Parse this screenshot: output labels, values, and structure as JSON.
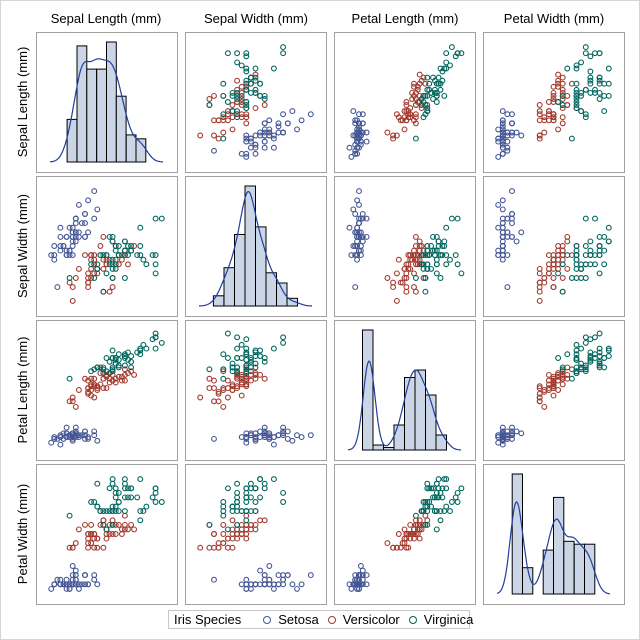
{
  "chart_data": {
    "type": "scatter-matrix",
    "title": "",
    "variables": [
      "Sepal Length (mm)",
      "Sepal Width (mm)",
      "Petal Length (mm)",
      "Petal Width (mm)"
    ],
    "diagonal": "histogram with kernel density curve",
    "legend": {
      "title": "Iris Species",
      "position": "bottom",
      "entries": [
        {
          "name": "Setosa",
          "color": "#445694"
        },
        {
          "name": "Versicolor",
          "color": "#A23A2E"
        },
        {
          "name": "Virginica",
          "color": "#01665E"
        }
      ]
    },
    "colors": {
      "hist_fill": "#CAD5E5",
      "hist_outline": "#000000",
      "density_line": "#1F3FA0",
      "panel_border": "#A0A0A0"
    },
    "series": [
      {
        "name": "Setosa",
        "rows": [
          [
            51,
            35,
            14,
            2
          ],
          [
            49,
            30,
            14,
            2
          ],
          [
            47,
            32,
            13,
            2
          ],
          [
            46,
            31,
            15,
            2
          ],
          [
            50,
            36,
            14,
            2
          ],
          [
            54,
            39,
            17,
            4
          ],
          [
            46,
            34,
            14,
            3
          ],
          [
            50,
            34,
            15,
            2
          ],
          [
            44,
            29,
            14,
            2
          ],
          [
            49,
            31,
            15,
            1
          ],
          [
            54,
            37,
            15,
            2
          ],
          [
            48,
            34,
            16,
            2
          ],
          [
            48,
            30,
            14,
            1
          ],
          [
            43,
            30,
            11,
            1
          ],
          [
            58,
            40,
            12,
            2
          ],
          [
            57,
            44,
            15,
            4
          ],
          [
            54,
            39,
            13,
            4
          ],
          [
            51,
            35,
            14,
            3
          ],
          [
            57,
            38,
            17,
            3
          ],
          [
            51,
            38,
            15,
            3
          ],
          [
            54,
            34,
            17,
            2
          ],
          [
            51,
            37,
            15,
            4
          ],
          [
            46,
            36,
            10,
            2
          ],
          [
            51,
            33,
            17,
            5
          ],
          [
            48,
            34,
            19,
            2
          ],
          [
            50,
            30,
            16,
            2
          ],
          [
            50,
            34,
            16,
            4
          ],
          [
            52,
            35,
            15,
            2
          ],
          [
            52,
            34,
            14,
            2
          ],
          [
            47,
            32,
            16,
            2
          ],
          [
            48,
            31,
            16,
            2
          ],
          [
            54,
            34,
            15,
            4
          ],
          [
            52,
            41,
            15,
            1
          ],
          [
            55,
            42,
            14,
            2
          ],
          [
            49,
            31,
            15,
            2
          ],
          [
            50,
            32,
            12,
            2
          ],
          [
            55,
            35,
            13,
            2
          ],
          [
            49,
            36,
            14,
            1
          ],
          [
            44,
            30,
            13,
            2
          ],
          [
            51,
            34,
            15,
            2
          ],
          [
            50,
            35,
            13,
            3
          ],
          [
            45,
            23,
            13,
            3
          ],
          [
            44,
            32,
            13,
            2
          ],
          [
            50,
            35,
            16,
            6
          ],
          [
            51,
            38,
            19,
            4
          ],
          [
            48,
            30,
            14,
            3
          ],
          [
            51,
            38,
            16,
            2
          ],
          [
            46,
            32,
            14,
            2
          ],
          [
            53,
            37,
            15,
            2
          ],
          [
            50,
            33,
            14,
            2
          ]
        ]
      },
      {
        "name": "Versicolor",
        "rows": [
          [
            70,
            32,
            47,
            14
          ],
          [
            64,
            32,
            45,
            15
          ],
          [
            69,
            31,
            49,
            15
          ],
          [
            55,
            23,
            40,
            13
          ],
          [
            65,
            28,
            46,
            15
          ],
          [
            57,
            28,
            45,
            13
          ],
          [
            63,
            33,
            47,
            16
          ],
          [
            49,
            24,
            33,
            10
          ],
          [
            66,
            29,
            46,
            13
          ],
          [
            52,
            27,
            39,
            14
          ],
          [
            50,
            20,
            35,
            10
          ],
          [
            59,
            30,
            42,
            15
          ],
          [
            60,
            22,
            40,
            10
          ],
          [
            61,
            29,
            47,
            14
          ],
          [
            56,
            29,
            36,
            13
          ],
          [
            67,
            31,
            44,
            14
          ],
          [
            56,
            30,
            45,
            15
          ],
          [
            58,
            27,
            41,
            10
          ],
          [
            62,
            22,
            45,
            15
          ],
          [
            56,
            25,
            39,
            11
          ],
          [
            59,
            32,
            48,
            18
          ],
          [
            61,
            28,
            40,
            13
          ],
          [
            63,
            25,
            49,
            15
          ],
          [
            61,
            28,
            47,
            12
          ],
          [
            64,
            29,
            43,
            13
          ],
          [
            66,
            30,
            44,
            14
          ],
          [
            68,
            28,
            48,
            14
          ],
          [
            67,
            30,
            50,
            17
          ],
          [
            60,
            29,
            45,
            15
          ],
          [
            57,
            26,
            35,
            10
          ],
          [
            55,
            24,
            38,
            11
          ],
          [
            55,
            24,
            37,
            10
          ],
          [
            58,
            27,
            39,
            12
          ],
          [
            60,
            27,
            51,
            16
          ],
          [
            54,
            30,
            45,
            15
          ],
          [
            60,
            34,
            45,
            16
          ],
          [
            67,
            31,
            47,
            15
          ],
          [
            63,
            23,
            44,
            13
          ],
          [
            56,
            30,
            41,
            13
          ],
          [
            55,
            25,
            40,
            13
          ],
          [
            55,
            26,
            44,
            12
          ],
          [
            61,
            30,
            46,
            14
          ],
          [
            58,
            26,
            40,
            12
          ],
          [
            50,
            23,
            33,
            10
          ],
          [
            56,
            27,
            42,
            13
          ],
          [
            57,
            30,
            42,
            12
          ],
          [
            57,
            29,
            42,
            13
          ],
          [
            62,
            29,
            43,
            13
          ],
          [
            51,
            25,
            30,
            11
          ],
          [
            57,
            28,
            41,
            13
          ]
        ]
      },
      {
        "name": "Virginica",
        "rows": [
          [
            63,
            33,
            60,
            25
          ],
          [
            58,
            27,
            51,
            19
          ],
          [
            71,
            30,
            59,
            21
          ],
          [
            63,
            29,
            56,
            18
          ],
          [
            65,
            30,
            58,
            22
          ],
          [
            76,
            30,
            66,
            21
          ],
          [
            49,
            25,
            45,
            17
          ],
          [
            73,
            29,
            63,
            18
          ],
          [
            67,
            25,
            58,
            18
          ],
          [
            72,
            36,
            61,
            25
          ],
          [
            65,
            32,
            51,
            20
          ],
          [
            64,
            27,
            53,
            19
          ],
          [
            68,
            30,
            55,
            21
          ],
          [
            57,
            25,
            50,
            20
          ],
          [
            58,
            28,
            51,
            24
          ],
          [
            64,
            32,
            53,
            23
          ],
          [
            65,
            30,
            55,
            18
          ],
          [
            77,
            38,
            67,
            22
          ],
          [
            77,
            26,
            69,
            23
          ],
          [
            60,
            22,
            50,
            15
          ],
          [
            69,
            32,
            57,
            23
          ],
          [
            56,
            28,
            49,
            20
          ],
          [
            77,
            28,
            67,
            20
          ],
          [
            63,
            27,
            49,
            18
          ],
          [
            67,
            33,
            57,
            21
          ],
          [
            72,
            32,
            60,
            18
          ],
          [
            62,
            28,
            48,
            18
          ],
          [
            61,
            30,
            49,
            18
          ],
          [
            64,
            28,
            56,
            21
          ],
          [
            72,
            30,
            58,
            16
          ],
          [
            74,
            28,
            61,
            19
          ],
          [
            79,
            38,
            64,
            20
          ],
          [
            64,
            28,
            56,
            22
          ],
          [
            63,
            28,
            51,
            15
          ],
          [
            61,
            26,
            56,
            14
          ],
          [
            77,
            30,
            61,
            23
          ],
          [
            63,
            34,
            56,
            24
          ],
          [
            64,
            31,
            55,
            18
          ],
          [
            60,
            30,
            48,
            18
          ],
          [
            69,
            31,
            54,
            21
          ],
          [
            67,
            31,
            56,
            24
          ],
          [
            69,
            31,
            51,
            23
          ],
          [
            58,
            27,
            51,
            19
          ],
          [
            68,
            32,
            59,
            23
          ],
          [
            67,
            33,
            57,
            25
          ],
          [
            67,
            30,
            52,
            23
          ],
          [
            63,
            25,
            50,
            19
          ],
          [
            65,
            30,
            52,
            20
          ],
          [
            62,
            34,
            54,
            23
          ],
          [
            59,
            30,
            51,
            18
          ]
        ]
      }
    ],
    "axis_ranges": [
      [
        40,
        82
      ],
      [
        18,
        46
      ],
      [
        5,
        73
      ],
      [
        -1,
        27
      ]
    ]
  }
}
